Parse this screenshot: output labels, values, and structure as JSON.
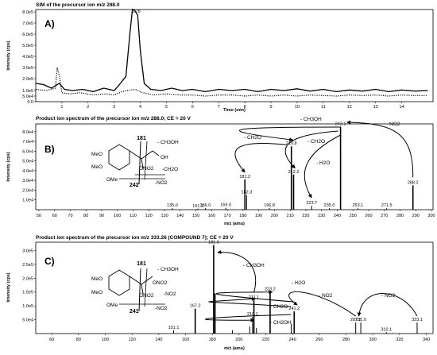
{
  "chart_data": [
    {
      "type": "line",
      "panel_label": "A)",
      "title": "SIM of the precursor ion m/z 288.0",
      "xlabel": "Time (min)",
      "ylabel": "Intensity (cps)",
      "xlim": [
        0,
        15.2
      ],
      "ylim": [
        0,
        900000
      ],
      "xticks": [
        "1",
        "2",
        "3",
        "4",
        "5",
        "6",
        "7",
        "8",
        "9",
        "10",
        "11",
        "12",
        "13",
        "14"
      ],
      "yticks": [
        "0.0",
        "5.0e4",
        "1.0e5",
        "2.0e5",
        "3.0e5",
        "4.0e5",
        "5.0e5",
        "6.0e5",
        "7.0e5",
        "8.0e5"
      ],
      "peak_label": "3.78",
      "series": [
        {
          "style": "solid",
          "points": [
            [
              0,
              160000
            ],
            [
              0.3,
              150000
            ],
            [
              0.6,
              120000
            ],
            [
              0.9,
              160000
            ],
            [
              1.1,
              110000
            ],
            [
              1.4,
              100000
            ],
            [
              1.8,
              110000
            ],
            [
              2.2,
              90000
            ],
            [
              2.6,
              120000
            ],
            [
              3.0,
              100000
            ],
            [
              3.2,
              150000
            ],
            [
              3.45,
              220000
            ],
            [
              3.6,
              600000
            ],
            [
              3.7,
              830000
            ],
            [
              3.78,
              820000
            ],
            [
              3.9,
              770000
            ],
            [
              4.0,
              450000
            ],
            [
              4.15,
              160000
            ],
            [
              4.4,
              110000
            ],
            [
              4.8,
              100000
            ],
            [
              5.2,
              120000
            ],
            [
              5.6,
              100000
            ],
            [
              6.0,
              110000
            ],
            [
              6.5,
              90000
            ],
            [
              7.0,
              110000
            ],
            [
              7.5,
              100000
            ],
            [
              8.0,
              110000
            ],
            [
              8.5,
              90000
            ],
            [
              9.0,
              110000
            ],
            [
              9.5,
              100000
            ],
            [
              10.0,
              115000
            ],
            [
              10.5,
              95000
            ],
            [
              11.0,
              110000
            ],
            [
              11.5,
              90000
            ],
            [
              12.0,
              105000
            ],
            [
              12.5,
              95000
            ],
            [
              13.0,
              110000
            ],
            [
              13.5,
              90000
            ],
            [
              14.0,
              105000
            ],
            [
              14.5,
              95000
            ],
            [
              15.0,
              100000
            ]
          ]
        },
        {
          "style": "dotted",
          "points": [
            [
              0,
              110000
            ],
            [
              0.4,
              100000
            ],
            [
              0.75,
              120000
            ],
            [
              0.82,
              300000
            ],
            [
              0.9,
              230000
            ],
            [
              1.0,
              80000
            ],
            [
              1.3,
              70000
            ],
            [
              1.7,
              80000
            ],
            [
              2.2,
              60000
            ],
            [
              2.7,
              70000
            ],
            [
              3.0,
              60000
            ],
            [
              3.3,
              90000
            ],
            [
              3.5,
              100000
            ],
            [
              3.8,
              110000
            ],
            [
              4.1,
              80000
            ],
            [
              4.5,
              60000
            ],
            [
              5.0,
              70000
            ],
            [
              5.5,
              60000
            ],
            [
              6.0,
              60000
            ],
            [
              6.5,
              50000
            ],
            [
              7.0,
              60000
            ],
            [
              7.5,
              60000
            ],
            [
              8.0,
              50000
            ],
            [
              8.5,
              60000
            ],
            [
              9.0,
              50000
            ],
            [
              9.5,
              60000
            ],
            [
              10.0,
              50000
            ],
            [
              10.5,
              60000
            ],
            [
              11.0,
              55000
            ],
            [
              11.5,
              50000
            ],
            [
              12.0,
              60000
            ],
            [
              12.5,
              55000
            ],
            [
              13.0,
              60000
            ],
            [
              13.5,
              50000
            ],
            [
              14.0,
              60000
            ],
            [
              14.5,
              55000
            ],
            [
              15.0,
              55000
            ]
          ]
        }
      ]
    },
    {
      "type": "bar",
      "panel_label": "B)",
      "title": "Product ion spectrum of the precursor ion m/z 288.0; CE = 20 V",
      "xlabel": "m/z (amu)",
      "ylabel": "Intensity (cps)",
      "xlim": [
        48,
        301
      ],
      "ylim": [
        0,
        88000
      ],
      "xticks": [
        "50",
        "60",
        "70",
        "80",
        "90",
        "100",
        "110",
        "120",
        "130",
        "140",
        "150",
        "160",
        "170",
        "180",
        "190",
        "200",
        "210",
        "220",
        "230",
        "240",
        "250",
        "260",
        "270",
        "280",
        "290",
        "300"
      ],
      "yticks": [
        "1.0e4",
        "2.0e4",
        "3.0e4",
        "4.0e4",
        "5.0e4",
        "6.0e4",
        "7.0e4",
        "8.0e4"
      ],
      "peaks": [
        {
          "mz": 135.0,
          "y": 1500,
          "label": "135.0"
        },
        {
          "mz": 151.3,
          "y": 1000,
          "label": "151.3"
        },
        {
          "mz": 156.0,
          "y": 1500,
          "label": "156.0"
        },
        {
          "mz": 169.0,
          "y": 2000,
          "label": "169.0"
        },
        {
          "mz": 181.2,
          "y": 31000,
          "label": "181.2"
        },
        {
          "mz": 182.3,
          "y": 15000,
          "label": "182.3"
        },
        {
          "mz": 196.8,
          "y": 1500,
          "label": "196.8"
        },
        {
          "mz": 210.8,
          "y": 65000,
          "label": "210.8"
        },
        {
          "mz": 212.2,
          "y": 36000,
          "label": "212.2"
        },
        {
          "mz": 223.7,
          "y": 4000,
          "label": "223.7"
        },
        {
          "mz": 235.0,
          "y": 1500,
          "label": "235.0"
        },
        {
          "mz": 242.1,
          "y": 85000,
          "label": "242.1"
        },
        {
          "mz": 253.1,
          "y": 1500,
          "label": "253.1"
        },
        {
          "mz": 271.5,
          "y": 1500,
          "label": "271.5"
        },
        {
          "mz": 288.2,
          "y": 25000,
          "label": "288.2"
        }
      ],
      "annotations": [
        "- CH3OH",
        "- CH2O",
        "- CH2O",
        "- H2O",
        "- NO2"
      ],
      "structure_labels": [
        "181",
        "- CH3OH",
        "MeO",
        "MeO",
        "OMe",
        "OH",
        "ONO2",
        "-CH2O",
        "242",
        "-NO2"
      ]
    },
    {
      "type": "bar",
      "panel_label": "C)",
      "title": "Product ion spectrum of the precursor ion m/z 333.26 (COMPOUND 7); CE = 20 V",
      "xlabel": "m/z (amu)",
      "ylabel": "Intensity (cps)",
      "xlim": [
        48,
        345
      ],
      "ylim": [
        0,
        330000
      ],
      "xticks": [
        "60",
        "80",
        "100",
        "120",
        "140",
        "160",
        "180",
        "200",
        "220",
        "240",
        "260",
        "280",
        "300",
        "320",
        "340"
      ],
      "yticks": [
        "5.0e4",
        "1.0e5",
        "1.5e5",
        "2.0e5",
        "2.5e5",
        "3.0e5"
      ],
      "peaks": [
        {
          "mz": 151.1,
          "y": 12000,
          "label": "151.1"
        },
        {
          "mz": 167.2,
          "y": 90000,
          "label": "167.2"
        },
        {
          "mz": 181.0,
          "y": 320000,
          "label": "181.0"
        },
        {
          "mz": 182.0,
          "y": 145000,
          "label": ""
        },
        {
          "mz": 195.0,
          "y": 12000,
          "label": ""
        },
        {
          "mz": 208.0,
          "y": 25000,
          "label": ""
        },
        {
          "mz": 210.1,
          "y": 60000,
          "label": "210.1"
        },
        {
          "mz": 211.1,
          "y": 120000,
          "label": "211.1"
        },
        {
          "mz": 213.0,
          "y": 20000,
          "label": ""
        },
        {
          "mz": 223.2,
          "y": 150000,
          "label": "223.2"
        },
        {
          "mz": 239.0,
          "y": 35000,
          "label": ""
        },
        {
          "mz": 241.2,
          "y": 80000,
          "label": "241.2"
        },
        {
          "mz": 287.2,
          "y": 40000,
          "label": "287.2"
        },
        {
          "mz": 291.0,
          "y": 40000,
          "label": "291.0"
        },
        {
          "mz": 310.1,
          "y": 5000,
          "label": "310.1"
        },
        {
          "mz": 333.1,
          "y": 40000,
          "label": "333.1"
        }
      ],
      "annotations": [
        "- CH3OH",
        "- H2O",
        "- CH2O",
        "- CH2OH",
        "- NO2",
        "- NO2"
      ],
      "structure_labels": [
        "181",
        "- CH3OH",
        "MeO",
        "MeO",
        "OMe",
        "ONO2",
        "ONO2",
        "-NO2",
        "241",
        "-NO2"
      ]
    }
  ]
}
